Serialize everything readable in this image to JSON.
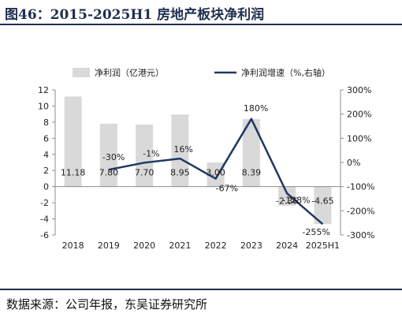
{
  "figure_title": "图46：2015-2025H1 房地产板块净利润",
  "source_note": "数据来源：公司年报，东吴证券研究所",
  "chart_data": {
    "type": "bar",
    "categories": [
      "2018",
      "2019",
      "2020",
      "2021",
      "2022",
      "2023",
      "2024",
      "2025H1"
    ],
    "series": [
      {
        "name": "净利润（亿港元）",
        "type": "bar",
        "axis": "left",
        "color": "#d9d9d9",
        "values": [
          11.18,
          7.8,
          7.7,
          8.95,
          3.0,
          8.39,
          -2.36,
          -4.65
        ],
        "labels": [
          "11.18",
          "7.80",
          "7.70",
          "8.95",
          "3.00",
          "8.39",
          "-2.36",
          "-4.65"
        ]
      },
      {
        "name": "净利润增速（%,右轴）",
        "type": "line",
        "axis": "right",
        "color": "#1f3864",
        "values": [
          null,
          -30,
          -1,
          16,
          -67,
          180,
          -128,
          -255
        ],
        "labels": [
          "",
          "-30%",
          "-1%",
          "16%",
          "-67%",
          "180%",
          "-128%",
          "-255%"
        ]
      }
    ],
    "y_left": {
      "min": -6,
      "max": 12,
      "ticks": [
        "-6",
        "-4",
        "-2",
        "0",
        "2",
        "4",
        "6",
        "8",
        "10",
        "12"
      ]
    },
    "y_right": {
      "min": -300,
      "max": 300,
      "ticks": [
        "-300%",
        "-200%",
        "-100%",
        "0%",
        "100%",
        "200%",
        "300%"
      ]
    },
    "legend_position": "top",
    "grid": false
  }
}
